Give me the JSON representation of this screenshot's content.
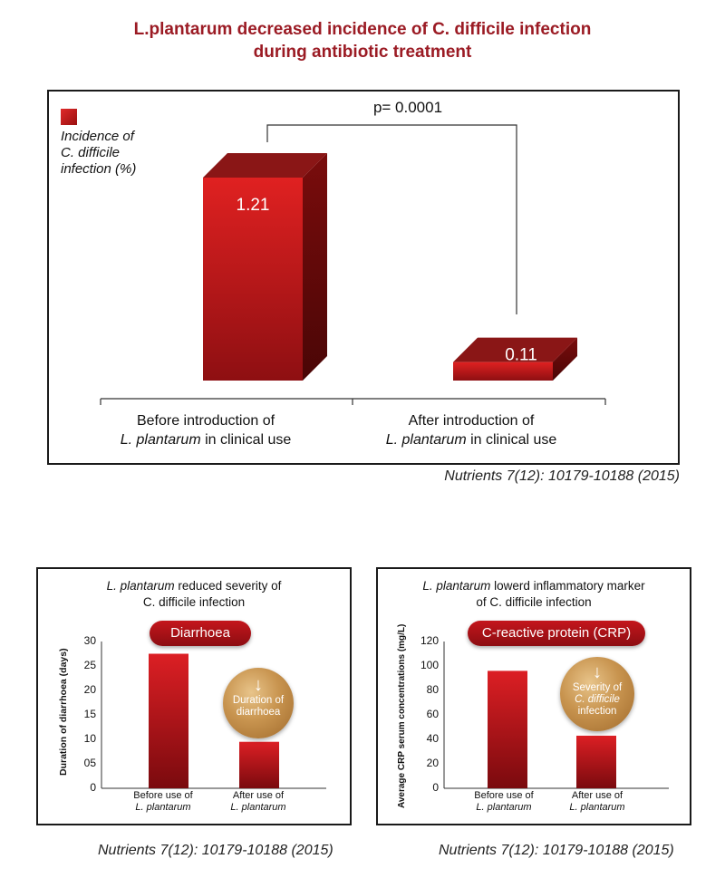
{
  "main_title": {
    "line1": "L.plantarum decreased incidence of C. difficile infection",
    "line2": "during antibiotic treatment"
  },
  "citation": "Nutrients 7(12): 10179-10188 (2015)",
  "chart_data": [
    {
      "type": "bar",
      "legend": [
        "Incidence of",
        "C. difficile",
        "infection (%)"
      ],
      "annotation": "p= 0.0001",
      "categories": [
        [
          "Before introduction of",
          "L. plantarum",
          " in clinical use"
        ],
        [
          "After introduction of",
          "L. plantarum",
          " in clinical use"
        ]
      ],
      "values": [
        1.21,
        0.11
      ],
      "value_labels": [
        "1.21",
        "0.11"
      ],
      "ylim": [
        0,
        1.21
      ]
    },
    {
      "type": "bar",
      "title": [
        "L. plantarum",
        " reduced severity of",
        "C. difficile infection"
      ],
      "pill": "Diarrhoea",
      "ylabel": "Duration of diarrhoea (days)",
      "yticks": [
        "30",
        "25",
        "20",
        "15",
        "10",
        "05",
        "0"
      ],
      "ylim": [
        0,
        30
      ],
      "categories": [
        [
          "Before use of",
          "L. plantarum"
        ],
        [
          "After use of",
          "L. plantarum"
        ]
      ],
      "values": [
        27.5,
        9.5
      ],
      "badge": [
        "↓",
        "Duration of",
        "diarrhoea"
      ]
    },
    {
      "type": "bar",
      "title": [
        "L. plantarum",
        " lowerd inflammatory marker",
        "of C. difficile infection"
      ],
      "pill": "C-reactive protein (CRP)",
      "ylabel": "Average CRP serum concentrations (mg/L)",
      "yticks": [
        "120",
        "100",
        "80",
        "60",
        "40",
        "20",
        "0"
      ],
      "ylim": [
        0,
        120
      ],
      "categories": [
        [
          "Before use of",
          "L. plantarum"
        ],
        [
          "After use of",
          "L. plantarum"
        ]
      ],
      "values": [
        96,
        43
      ],
      "badge": [
        "↓",
        "Severity of",
        "C. difficile",
        "infection"
      ]
    }
  ],
  "colors": {
    "title": "#9b1b24",
    "bar_front": "#c4161c",
    "bar_side": "#6a0a0a",
    "bar_top": "#8a1616"
  }
}
